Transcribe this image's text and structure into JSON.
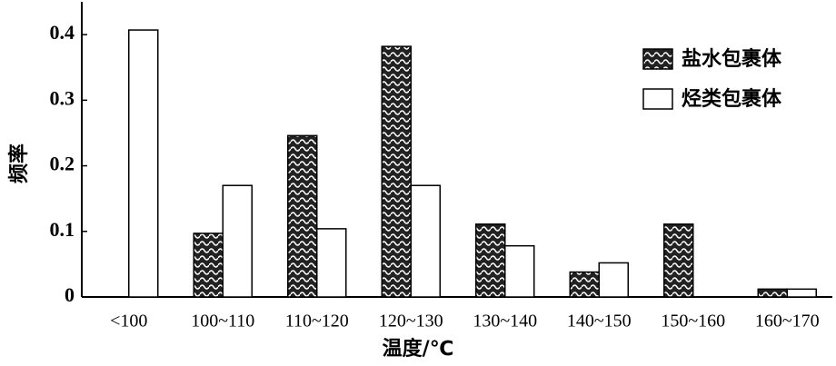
{
  "chart_data": {
    "type": "bar",
    "x_label": "温度/℃",
    "y_label": "频率",
    "categories": [
      "<100",
      "100~110",
      "110~120",
      "120~130",
      "130~140",
      "140~150",
      "150~160",
      "160~170"
    ],
    "series": [
      {
        "name": "盐水包裹体",
        "color": "#222222",
        "hatch": "wave",
        "values": [
          0,
          0.097,
          0.246,
          0.382,
          0.111,
          0.038,
          0.111,
          0.012
        ]
      },
      {
        "name": "烃类包裹体",
        "color": "#ffffff",
        "values": [
          0.407,
          0.17,
          0.104,
          0.17,
          0.078,
          0.052,
          0,
          0.012
        ]
      }
    ],
    "ylim": [
      0,
      0.45
    ],
    "yticks": [
      0,
      0.1,
      0.2,
      0.3,
      0.4
    ],
    "legend": "upper right"
  }
}
